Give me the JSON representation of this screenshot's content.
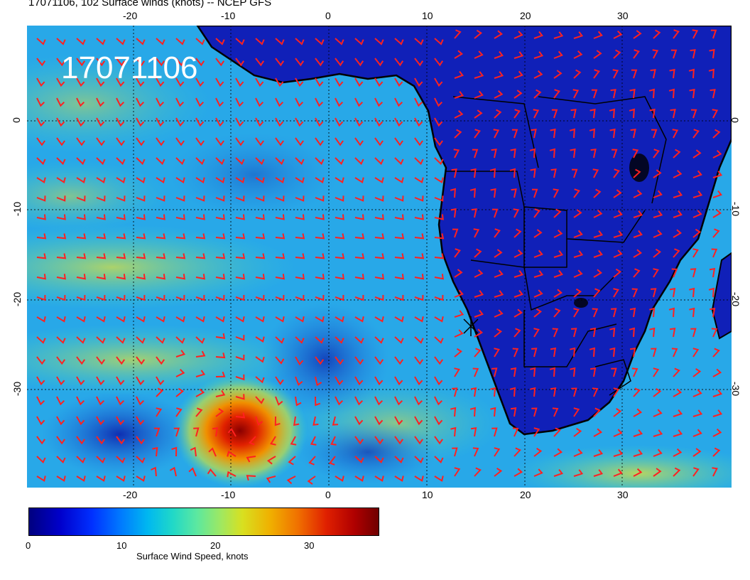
{
  "title": "17071106, 102 Surface winds (knots) -- NCEP GFS",
  "datetime_stamp": "17071106",
  "axes": {
    "lon_labels": [
      "-20",
      "-10",
      "0",
      "10",
      "20",
      "30"
    ],
    "lat_labels": [
      "0",
      "-10",
      "-20",
      "-30"
    ]
  },
  "colorbar": {
    "label": "Surface Wind Speed, knots",
    "tick_labels": [
      "0",
      "10",
      "20",
      "30"
    ],
    "range": [
      0,
      37
    ]
  },
  "colors": {
    "wind_barb": "#ff2020",
    "coastline": "#000000",
    "calm": "#0a1aa8",
    "strong": "#c01010"
  },
  "features": {
    "storm_center": {
      "lon": -9,
      "lat": -34,
      "note_icon": "low-pressure-center"
    },
    "station_marker": {
      "lon": 14.5,
      "lat": -22.9
    }
  }
}
